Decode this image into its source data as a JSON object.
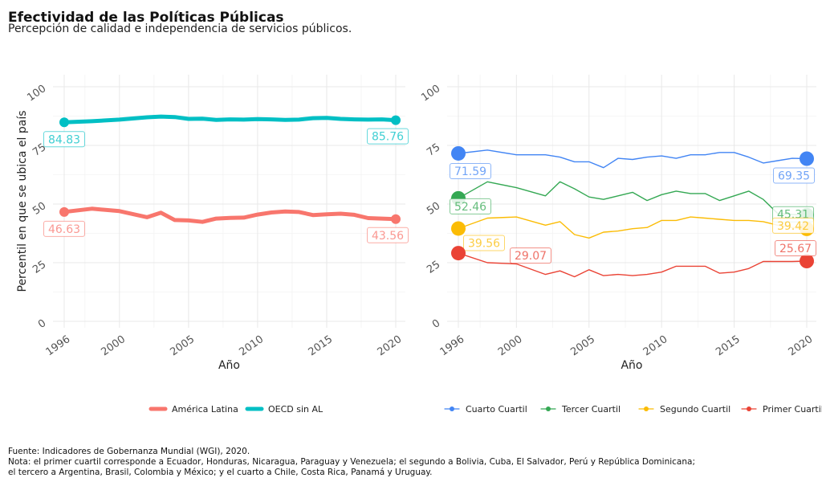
{
  "header": {
    "title": "Efectividad de las Políticas Públicas",
    "subtitle": "Percepción de calidad e independencia de servicios públicos."
  },
  "caption": {
    "source": "Fuente: Indicadores de Gobernanza Mundial (WGI), 2020.",
    "note_1": "Nota: el primer cuartil corresponde a Ecuador, Honduras, Nicaragua, Paraguay y Venezuela; el segundo a Bolivia, Cuba, El Salvador, Perú y República Dominicana;",
    "note_2": "el tercero a Argentina, Brasil, Colombia y México; y el cuarto a Chile, Costa Rica, Panamá y Uruguay."
  },
  "chart_data": [
    {
      "type": "line",
      "ylabel": "Percentil en que se ubica el país",
      "xlabel": "Año",
      "xlim": [
        1996,
        2020
      ],
      "ylim": [
        0,
        100
      ],
      "xticks": [
        "1996",
        "2000",
        "2005",
        "2010",
        "2015",
        "2020"
      ],
      "yticks": [
        "0",
        "25",
        "50",
        "75",
        "100"
      ],
      "grid": true,
      "legend_position": "bottom",
      "x": [
        1996,
        1998,
        2000,
        2002,
        2003,
        2004,
        2005,
        2006,
        2007,
        2008,
        2009,
        2010,
        2011,
        2012,
        2013,
        2014,
        2015,
        2016,
        2017,
        2018,
        2019,
        2020
      ],
      "series": [
        {
          "name": "América Latina",
          "color": "#F8766D",
          "values": [
            46.63,
            48.0,
            47.0,
            44.4,
            46.3,
            43.2,
            43.0,
            42.4,
            43.8,
            44.1,
            44.2,
            45.5,
            46.4,
            46.8,
            46.6,
            45.3,
            45.6,
            45.9,
            45.4,
            44.0,
            43.8,
            43.56
          ],
          "start_label": "46.63",
          "end_label": "43.56"
        },
        {
          "name": "OECD sin AL",
          "color": "#00BFC4",
          "values": [
            84.83,
            85.3,
            86.0,
            87.0,
            87.3,
            87.1,
            86.3,
            86.4,
            85.9,
            86.1,
            86.0,
            86.2,
            86.1,
            85.9,
            86.0,
            86.6,
            86.7,
            86.3,
            86.1,
            86.0,
            86.1,
            85.76
          ],
          "start_label": "84.83",
          "end_label": "85.76"
        }
      ]
    },
    {
      "type": "line",
      "ylabel": "",
      "xlabel": "Año",
      "xlim": [
        1996,
        2020
      ],
      "ylim": [
        0,
        100
      ],
      "xticks": [
        "1996",
        "2000",
        "2005",
        "2010",
        "2015",
        "2020"
      ],
      "yticks": [
        "0",
        "25",
        "50",
        "75",
        "100"
      ],
      "grid": true,
      "legend_position": "bottom",
      "x": [
        1996,
        1998,
        2000,
        2002,
        2003,
        2004,
        2005,
        2006,
        2007,
        2008,
        2009,
        2010,
        2011,
        2012,
        2013,
        2014,
        2015,
        2016,
        2017,
        2018,
        2019,
        2020
      ],
      "series": [
        {
          "name": "Cuarto Cuartil",
          "color": "#4285F4",
          "values": [
            71.59,
            73.0,
            71.0,
            71.0,
            70.0,
            68.0,
            68.0,
            65.5,
            69.5,
            69.0,
            70.0,
            70.5,
            69.5,
            71.0,
            71.0,
            72.0,
            72.0,
            70.0,
            67.5,
            68.5,
            69.5,
            69.35
          ],
          "start_label": "71.59",
          "end_label": "69.35"
        },
        {
          "name": "Tercer Cuartil",
          "color": "#34A853",
          "values": [
            52.46,
            59.5,
            57.0,
            53.5,
            59.5,
            56.5,
            53.0,
            52.0,
            53.5,
            55.0,
            51.5,
            54.0,
            55.5,
            54.5,
            54.5,
            51.5,
            53.5,
            55.5,
            52.0,
            46.0,
            45.5,
            45.31
          ],
          "start_label": "52.46",
          "end_label": "45.31"
        },
        {
          "name": "Segundo Cuartil",
          "color": "#FBBC05",
          "values": [
            39.56,
            44.0,
            44.5,
            41.0,
            42.5,
            37.0,
            35.5,
            38.0,
            38.5,
            39.5,
            40.0,
            43.0,
            43.0,
            44.5,
            44.0,
            43.5,
            43.0,
            43.0,
            42.5,
            41.0,
            40.0,
            39.42
          ],
          "start_label": "39.56",
          "end_label": "39.42"
        },
        {
          "name": "Primer Cuartil",
          "color": "#EA4335",
          "values": [
            29.07,
            25.0,
            24.5,
            20.0,
            21.5,
            19.0,
            22.0,
            19.5,
            20.0,
            19.5,
            20.0,
            21.0,
            23.5,
            23.5,
            23.5,
            20.5,
            21.0,
            22.5,
            25.5,
            25.5,
            25.5,
            25.67
          ],
          "start_label": "29.07",
          "end_label": "25.67"
        }
      ]
    }
  ]
}
